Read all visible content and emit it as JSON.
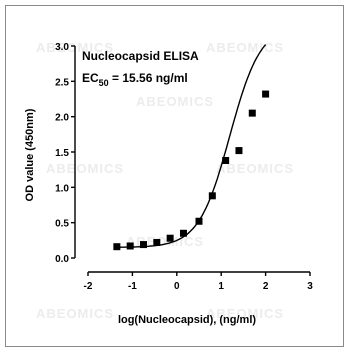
{
  "chart_data": {
    "type": "scatter",
    "title": "Nucleocapsid ELISA",
    "subtitle_main": "EC",
    "subtitle_sub": "50",
    "subtitle_rest": " = 15.56 ng/ml",
    "xlabel": "log(Nucleocapsid), (ng/ml)",
    "ylabel": "OD value (450nm)",
    "xlim": [
      -2,
      3
    ],
    "ylim": [
      0,
      3
    ],
    "xticks": [
      -2,
      -1,
      0,
      1,
      2,
      3
    ],
    "yticks": [
      0.0,
      0.5,
      1.0,
      1.5,
      2.0,
      2.5,
      3.0
    ],
    "ytick_labels": [
      "0.0",
      "0.5",
      "1.0",
      "1.5",
      "2.0",
      "2.5",
      "3.0"
    ],
    "grid": false,
    "series": [
      {
        "x": [
          -1.35,
          -1.05,
          -0.75,
          -0.45,
          -0.15,
          0.15,
          0.5,
          0.8,
          1.1,
          1.4,
          1.7,
          2.0
        ],
        "y": [
          0.16,
          0.17,
          0.19,
          0.22,
          0.28,
          0.35,
          0.52,
          0.88,
          1.38,
          1.52,
          2.05,
          2.32
        ]
      }
    ],
    "curve": {
      "type": "4PL",
      "bottom": 0.15,
      "top": 3.3,
      "logEC50": 1.192,
      "hill": 1.25
    }
  },
  "watermark": "ABEOMICS",
  "colors": {
    "marker": "#000000",
    "line": "#000000",
    "watermark": "#ececec"
  }
}
